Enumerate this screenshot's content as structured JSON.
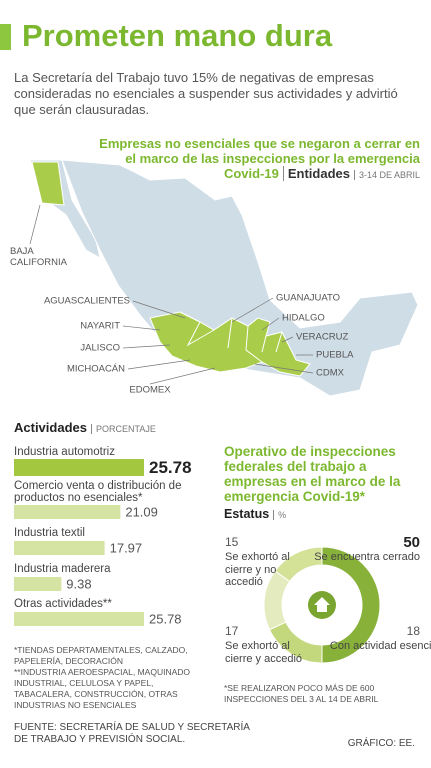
{
  "header": {
    "title": "Prometen mano dura",
    "intro": "La Secretaría del Trabajo tuvo 15% de negativas de empresas consideradas no esenciales a suspender sus actividades y advirtió que serán clausuradas."
  },
  "map": {
    "title": "Empresas no esenciales que se negaron a cerrar en el marco de las inspecciones por la emergencia Covid-19",
    "subtitle": "Entidades",
    "note": "3-14 DE ABRIL",
    "labels": [
      "BAJA CALIFORNIA",
      "AGUASCALIENTES",
      "NAYARIT",
      "JALISCO",
      "MICHOACÁN",
      "EDOMEX",
      "GUANAJUATO",
      "HIDALGO",
      "VERACRUZ",
      "PUEBLA",
      "CDMX"
    ]
  },
  "chart_data": [
    {
      "type": "bar",
      "title": "Actividades",
      "subtitle": "PORCENTAJE",
      "categories": [
        "Industria automotriz",
        "Comercio venta o distribución de productos no esenciales*",
        "Industria textil",
        "Industria maderera",
        "Otras actividades**"
      ],
      "values": [
        25.78,
        21.09,
        17.97,
        9.38,
        25.78
      ],
      "colors": [
        "#a3c73f",
        "#d6e4a3",
        "#d6e4a3",
        "#d6e4a3",
        "#d6e4a3"
      ]
    },
    {
      "type": "pie",
      "title": "Operativo de inspecciones federales del trabajo a empresas en el marco de la emergencia Covid-19*",
      "subtitle": "Estatus",
      "unit": "%",
      "categories": [
        "Se encuentra cerrado",
        "Con actividad esencial",
        "Se exhortó al cierre y accedió",
        "Se exhortó al cierre y no accedió"
      ],
      "values": [
        50,
        18,
        17,
        15
      ],
      "colors": [
        "#88b13a",
        "#c3d87c",
        "#e4ecbf",
        "#d3e297"
      ],
      "note": "*SE REALIZARON POCO MÁS DE 600 INSPECCIONES DEL 3 AL 14 DE ABRIL"
    }
  ],
  "notes": [
    "*TIENDAS DEPARTAMENTALES, CALZADO, PAPELERÍA, DECORACIÓN",
    "**INDUSTRIA AEROESPACIAL, MAQUINADO INDUSTRIAL, CELULOSA Y PAPEL, TABACALERA, CONSTRUCCIÓN, OTRAS INDUSTRIAS NO ESENCIALES"
  ],
  "footer": {
    "source": "FUENTE: SECRETARÍA DE SALUD Y SECRETARÍA DE TRABAJO Y PREVISIÓN SOCIAL.",
    "credit": "GRÁFICO: EE."
  }
}
